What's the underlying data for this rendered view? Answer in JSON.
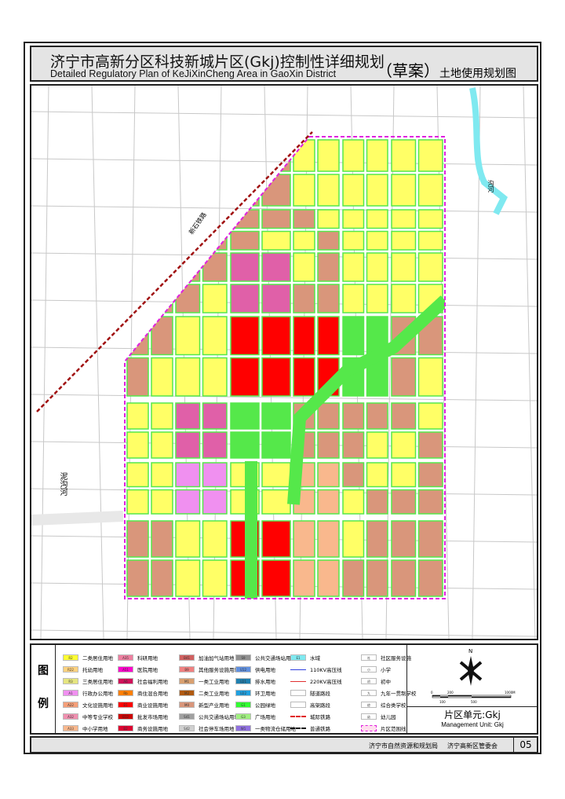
{
  "title": {
    "cn": "济宁市高新分区科技新城片区(Gkj)控制性详细规划",
    "en": "Detailed Regulatory Plan of KeJiXinCheng Area in GaoXin District",
    "draft": "（草案）",
    "subtitle": "土地使用规划图"
  },
  "map": {
    "labels": {
      "railway": "新石铁路",
      "river": "泥沟河",
      "river_short": "沟河"
    },
    "colors": {
      "R2": "#ffff66",
      "R22": "#ffd27f",
      "tan": "#d9967b",
      "B1": "#ff0000",
      "A5": "#e060a8",
      "A33": "#f9b88d",
      "G1": "#55e84a",
      "E1": "#7fe9f0",
      "A1": "#f090f0",
      "boundary": "#e020e0",
      "railway": "#a01010",
      "road": "#c8c8c8"
    }
  },
  "legend": {
    "title_top": "图",
    "title_bottom": "例",
    "columns": [
      [
        {
          "code": "R2",
          "label": "二类居住用地",
          "color": "#ffff33"
        },
        {
          "code": "R22",
          "label": "托幼用地",
          "color": "#ffd27f"
        },
        {
          "code": "R3",
          "label": "三类居住用地",
          "color": "#e6e680"
        },
        {
          "code": "A1",
          "label": "行政办公用地",
          "color": "#f090f0"
        },
        {
          "code": "A22",
          "label": "文化设施用地",
          "color": "#f5a07a"
        },
        {
          "code": "A32",
          "label": "中等专业学校",
          "color": "#f090b0"
        },
        {
          "code": "A33",
          "label": "中小学用地",
          "color": "#f9b88d"
        }
      ],
      [
        {
          "code": "A35",
          "label": "科研用地",
          "color": "#ee7fa0"
        },
        {
          "code": "A51",
          "label": "医院用地",
          "color": "#ff00cc"
        },
        {
          "code": "A6",
          "label": "社会福利用地",
          "color": "#d0105a"
        },
        {
          "code": "Rb",
          "label": "商住混合用地",
          "color": "#ff8000"
        },
        {
          "code": "B1",
          "label": "商业设施用地",
          "color": "#ff0000"
        },
        {
          "code": "B12",
          "label": "批发市场用地",
          "color": "#cc0000"
        },
        {
          "code": "B2",
          "label": "商务设施用地",
          "color": "#dd0030"
        }
      ],
      [
        {
          "code": "B41",
          "label": "加油加气站用地",
          "color": "#d06060"
        },
        {
          "code": "B9",
          "label": "其他服务设施用地",
          "color": "#f08080"
        },
        {
          "code": "M1",
          "label": "一类工业用地",
          "color": "#d9a070"
        },
        {
          "code": "M2",
          "label": "二类工业用地",
          "color": "#b05a10"
        },
        {
          "code": "M0",
          "label": "新型产业用地",
          "color": "#d9967b"
        },
        {
          "code": "S41",
          "label": "公共交通场站用地",
          "color": "#a0a0a0"
        },
        {
          "code": "S42",
          "label": "社会停车场用地",
          "color": "#d0d0d0"
        }
      ],
      [
        {
          "code": "S9",
          "label": "公共交通场站用地",
          "color": "#909090"
        },
        {
          "code": "U12",
          "label": "供电用地",
          "color": "#6090e0"
        },
        {
          "code": "U21",
          "label": "排水用地",
          "color": "#2080b0"
        },
        {
          "code": "U22",
          "label": "环卫用地",
          "color": "#20a0e0"
        },
        {
          "code": "G1",
          "label": "公园绿地",
          "color": "#33ff33"
        },
        {
          "code": "G3",
          "label": "广场用地",
          "color": "#a0f080"
        },
        {
          "code": "W1",
          "label": "一类物流仓储用地",
          "color": "#9070e0"
        }
      ],
      [
        {
          "code": "E1",
          "label": "水域",
          "color": "#7fe9f0"
        },
        {
          "code": "",
          "label": "110KV高压线",
          "line": "blue"
        },
        {
          "code": "",
          "label": "220KV高压线",
          "line": "red"
        },
        {
          "code": "",
          "label": "隧道路段",
          "line": "box"
        },
        {
          "code": "",
          "label": "高架路段",
          "line": "box"
        },
        {
          "code": "",
          "label": "城际铁路",
          "line": "reddash"
        },
        {
          "code": "",
          "label": "普通铁路",
          "line": "blackdash"
        }
      ],
      [
        {
          "code": "社",
          "label": "社区服务设施"
        },
        {
          "code": "小",
          "label": "小学"
        },
        {
          "code": "初",
          "label": "初中"
        },
        {
          "code": "九",
          "label": "九年一贯制学校"
        },
        {
          "code": "综",
          "label": "综合类学校"
        },
        {
          "code": "幼",
          "label": "幼儿园"
        },
        {
          "code": "",
          "label": "片区范围线",
          "line": "boundary"
        }
      ]
    ],
    "north": "N",
    "scale": [
      "0",
      "100",
      "200",
      "500",
      "1000M"
    ],
    "unit_cn": "片区单元:Gkj",
    "unit_en": "Management Unit: Gkj"
  },
  "footer": {
    "org1": "济宁市自然资源和规划局",
    "org2": "济宁高新区管委会",
    "page": "05"
  }
}
